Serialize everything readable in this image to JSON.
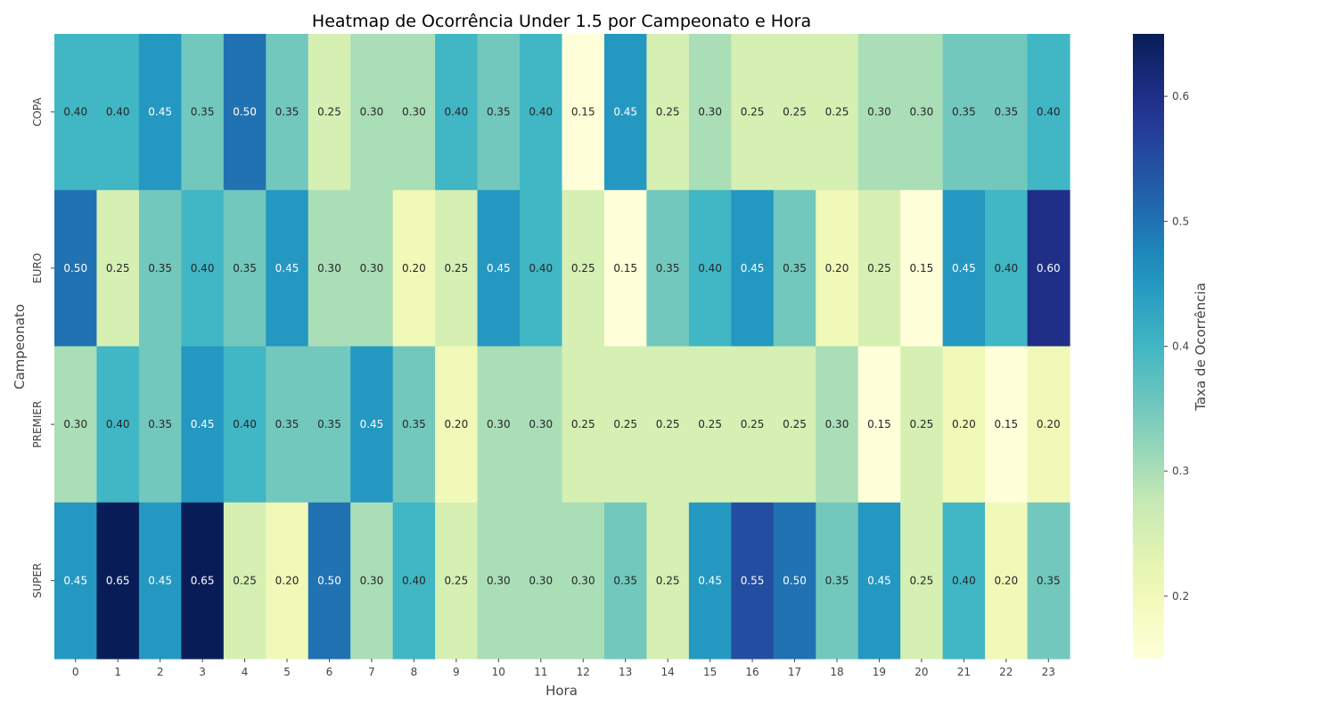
{
  "chart_data": {
    "type": "heatmap",
    "title": "Heatmap de Ocorrência Under 1.5 por Campeonato e Hora",
    "xlabel": "Hora",
    "ylabel": "Campeonato",
    "colorbar_label": "Taxa de Ocorrência",
    "colormap": "YlGnBu",
    "vmin": 0.15,
    "vmax": 0.65,
    "colorbar_ticks": [
      "0.2",
      "0.3",
      "0.4",
      "0.5",
      "0.6"
    ],
    "colorbar_tick_values": [
      0.2,
      0.3,
      0.4,
      0.5,
      0.6
    ],
    "x": [
      "0",
      "1",
      "2",
      "3",
      "4",
      "5",
      "6",
      "7",
      "8",
      "9",
      "10",
      "11",
      "12",
      "13",
      "14",
      "15",
      "16",
      "17",
      "18",
      "19",
      "20",
      "21",
      "22",
      "23"
    ],
    "y": [
      "COPA",
      "EURO",
      "PREMIER",
      "SUPER"
    ],
    "values": [
      [
        0.4,
        0.4,
        0.45,
        0.35,
        0.5,
        0.35,
        0.25,
        0.3,
        0.3,
        0.4,
        0.35,
        0.4,
        0.15,
        0.45,
        0.25,
        0.3,
        0.25,
        0.25,
        0.25,
        0.3,
        0.3,
        0.35,
        0.35,
        0.4
      ],
      [
        0.5,
        0.25,
        0.35,
        0.4,
        0.35,
        0.45,
        0.3,
        0.3,
        0.2,
        0.25,
        0.45,
        0.4,
        0.25,
        0.15,
        0.35,
        0.4,
        0.45,
        0.35,
        0.2,
        0.25,
        0.15,
        0.45,
        0.4,
        0.6
      ],
      [
        0.3,
        0.4,
        0.35,
        0.45,
        0.4,
        0.35,
        0.35,
        0.45,
        0.35,
        0.2,
        0.3,
        0.3,
        0.25,
        0.25,
        0.25,
        0.25,
        0.25,
        0.25,
        0.3,
        0.15,
        0.25,
        0.2,
        0.15,
        0.2
      ],
      [
        0.45,
        0.65,
        0.45,
        0.65,
        0.25,
        0.2,
        0.5,
        0.3,
        0.4,
        0.25,
        0.3,
        0.3,
        0.3,
        0.35,
        0.25,
        0.45,
        0.55,
        0.5,
        0.35,
        0.45,
        0.25,
        0.4,
        0.2,
        0.35
      ]
    ],
    "annotations": [
      [
        "0.40",
        "0.40",
        "0.45",
        "0.35",
        "0.50",
        "0.35",
        "0.25",
        "0.30",
        "0.30",
        "0.40",
        "0.35",
        "0.40",
        "0.15",
        "0.45",
        "0.25",
        "0.30",
        "0.25",
        "0.25",
        "0.25",
        "0.30",
        "0.30",
        "0.35",
        "0.35",
        "0.40"
      ],
      [
        "0.50",
        "0.25",
        "0.35",
        "0.40",
        "0.35",
        "0.45",
        "0.30",
        "0.30",
        "0.20",
        "0.25",
        "0.45",
        "0.40",
        "0.25",
        "0.15",
        "0.35",
        "0.40",
        "0.45",
        "0.35",
        "0.20",
        "0.25",
        "0.15",
        "0.45",
        "0.40",
        "0.60"
      ],
      [
        "0.30",
        "0.40",
        "0.35",
        "0.45",
        "0.40",
        "0.35",
        "0.35",
        "0.45",
        "0.35",
        "0.20",
        "0.30",
        "0.30",
        "0.25",
        "0.25",
        "0.25",
        "0.25",
        "0.25",
        "0.25",
        "0.30",
        "0.15",
        "0.25",
        "0.20",
        "0.15",
        "0.20"
      ],
      [
        "0.45",
        "0.65",
        "0.45",
        "0.65",
        "0.25",
        "0.20",
        "0.50",
        "0.30",
        "0.40",
        "0.25",
        "0.30",
        "0.30",
        "0.30",
        "0.35",
        "0.25",
        "0.45",
        "0.55",
        "0.50",
        "0.35",
        "0.45",
        "0.25",
        "0.40",
        "0.20",
        "0.35"
      ]
    ]
  }
}
